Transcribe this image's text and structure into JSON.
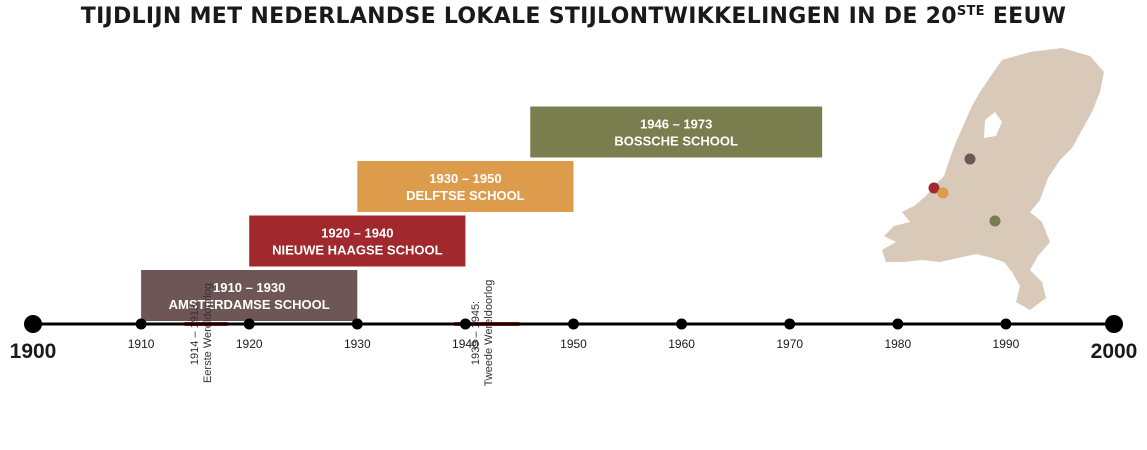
{
  "title": {
    "main": "TIJDLIJN MET NEDERLANDSE LOKALE STIJLONTWIKKELINGEN IN DE 20",
    "sup": "STE",
    "tail": " EEUW"
  },
  "timeline": {
    "start_label": "1900",
    "end_label": "2000",
    "start_year": 1900,
    "end_year": 2000,
    "line_color": "#000000",
    "ticks": [
      "1910",
      "1920",
      "1930",
      "1940",
      "1950",
      "1960",
      "1970",
      "1980",
      "1990"
    ]
  },
  "wars": [
    {
      "start": 1914,
      "end": 1918,
      "line1": "1914 – 1918:",
      "line2": "Eerste Wereldoorlog",
      "color": "#e8222a"
    },
    {
      "start": 1939,
      "end": 1945,
      "line1": "1939 – 1945:",
      "line2": "Tweede Wereldoorlog",
      "color": "#e8222a"
    }
  ],
  "styles": [
    {
      "start": 1910,
      "end": 1930,
      "years": "1910 – 1930",
      "name": "AMSTERDAMSE SCHOOL",
      "color": "#6e5656",
      "level": 1
    },
    {
      "start": 1920,
      "end": 1940,
      "years": "1920 – 1940",
      "name": "NIEUWE HAAGSE SCHOOL",
      "color": "#a1282d",
      "level": 2
    },
    {
      "start": 1930,
      "end": 1950,
      "years": "1930 – 1950",
      "name": "DELFTSE SCHOOL",
      "color": "#dd9c4c",
      "level": 3
    },
    {
      "start": 1946,
      "end": 1973,
      "years": "1946 – 1973",
      "name": "BOSSCHE SCHOOL",
      "color": "#7a7d4e",
      "level": 4
    }
  ],
  "map": {
    "land_color": "#d8c9b8",
    "markers": [
      {
        "place": "Amsterdam",
        "color": "#6e5656"
      },
      {
        "place": "Den Haag",
        "color": "#a1282d"
      },
      {
        "place": "Delft",
        "color": "#dd9c4c"
      },
      {
        "place": "'s-Hertogenbosch",
        "color": "#7a7d4e"
      }
    ]
  }
}
